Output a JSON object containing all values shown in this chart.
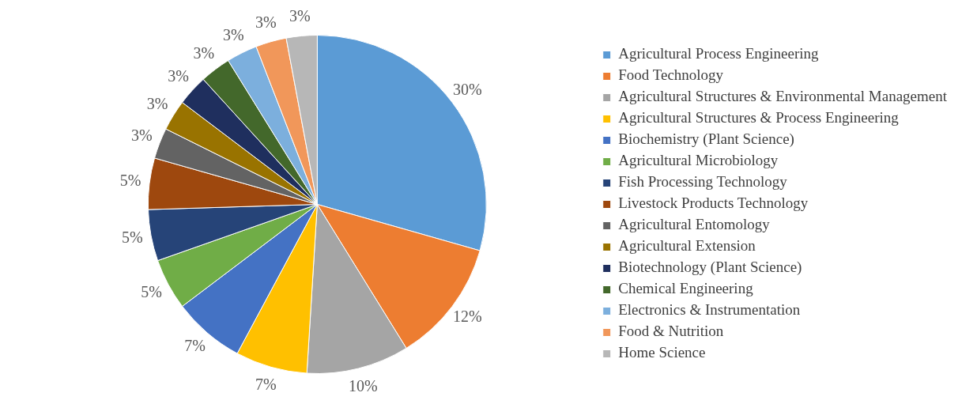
{
  "chart_data": {
    "type": "pie",
    "categories": [
      "Agricultural Process Engineering",
      "Food Technology",
      "Agricultural Structures & Environmental Management",
      "Agricultural Structures & Process Engineering",
      "Biochemistry (Plant Science)",
      "Agricultural Microbiology",
      "Fish Processing Technology",
      "Livestock Products Technology",
      "Agricultural Entomology",
      "Agricultural Extension",
      "Biotechnology (Plant Science)",
      "Chemical Engineering",
      "Electronics & Instrumentation",
      "Food & Nutrition",
      "Home Science"
    ],
    "values": [
      30,
      12,
      10,
      7,
      7,
      5,
      5,
      5,
      3,
      3,
      3,
      3,
      3,
      3,
      3
    ],
    "value_labels": [
      "30%",
      "12%",
      "10%",
      "7%",
      "7%",
      "5%",
      "5%",
      "5%",
      "3%",
      "3%",
      "3%",
      "3%",
      "3%",
      "3%",
      "3%"
    ],
    "colors": [
      "#5b9bd5",
      "#ed7d31",
      "#a5a5a5",
      "#ffc000",
      "#4472c4",
      "#70ad47",
      "#264478",
      "#9e480e",
      "#636363",
      "#997300",
      "#1f2f5e",
      "#43682b",
      "#7cafdd",
      "#f1975a",
      "#b7b7b7"
    ],
    "legend": "right"
  }
}
